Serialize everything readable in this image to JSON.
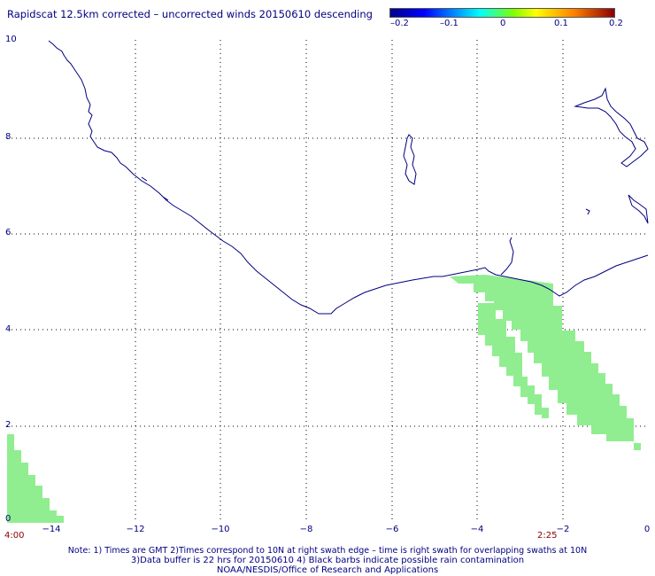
{
  "title": "Rapidscat 12.5km corrected – uncorrected winds 20150610 descending",
  "colorbar": {
    "ticks": [
      "–0.2",
      "–0.1",
      "0",
      "0.1",
      "0.2"
    ],
    "colors": [
      "#00008b",
      "#0000ff",
      "#00ffff",
      "#ffff00",
      "#ff8000",
      "#8b0000"
    ]
  },
  "axes": {
    "y_ticks": [
      "10",
      "8",
      "6",
      "4",
      "2",
      "0"
    ],
    "x_ticks": [
      "−14",
      "−12",
      "−10",
      "−8",
      "−6",
      "−4",
      "−2",
      "0"
    ]
  },
  "swath_times": {
    "left": "4:00",
    "right": "2:25"
  },
  "notes": [
    "Note: 1) Times are GMT 2)Times correspond to 10N at right swath edge – time is right swath for overlapping swaths at 10N",
    "3)Data buffer is 22 hrs for 20150610 4) Black barbs indicate possible rain contamination",
    "NOAA/NESDIS/Office of Research and Applications"
  ],
  "colors": {
    "coast": "#000080",
    "swath": "#90ee90",
    "grid": "#000000",
    "text": "#000080"
  }
}
